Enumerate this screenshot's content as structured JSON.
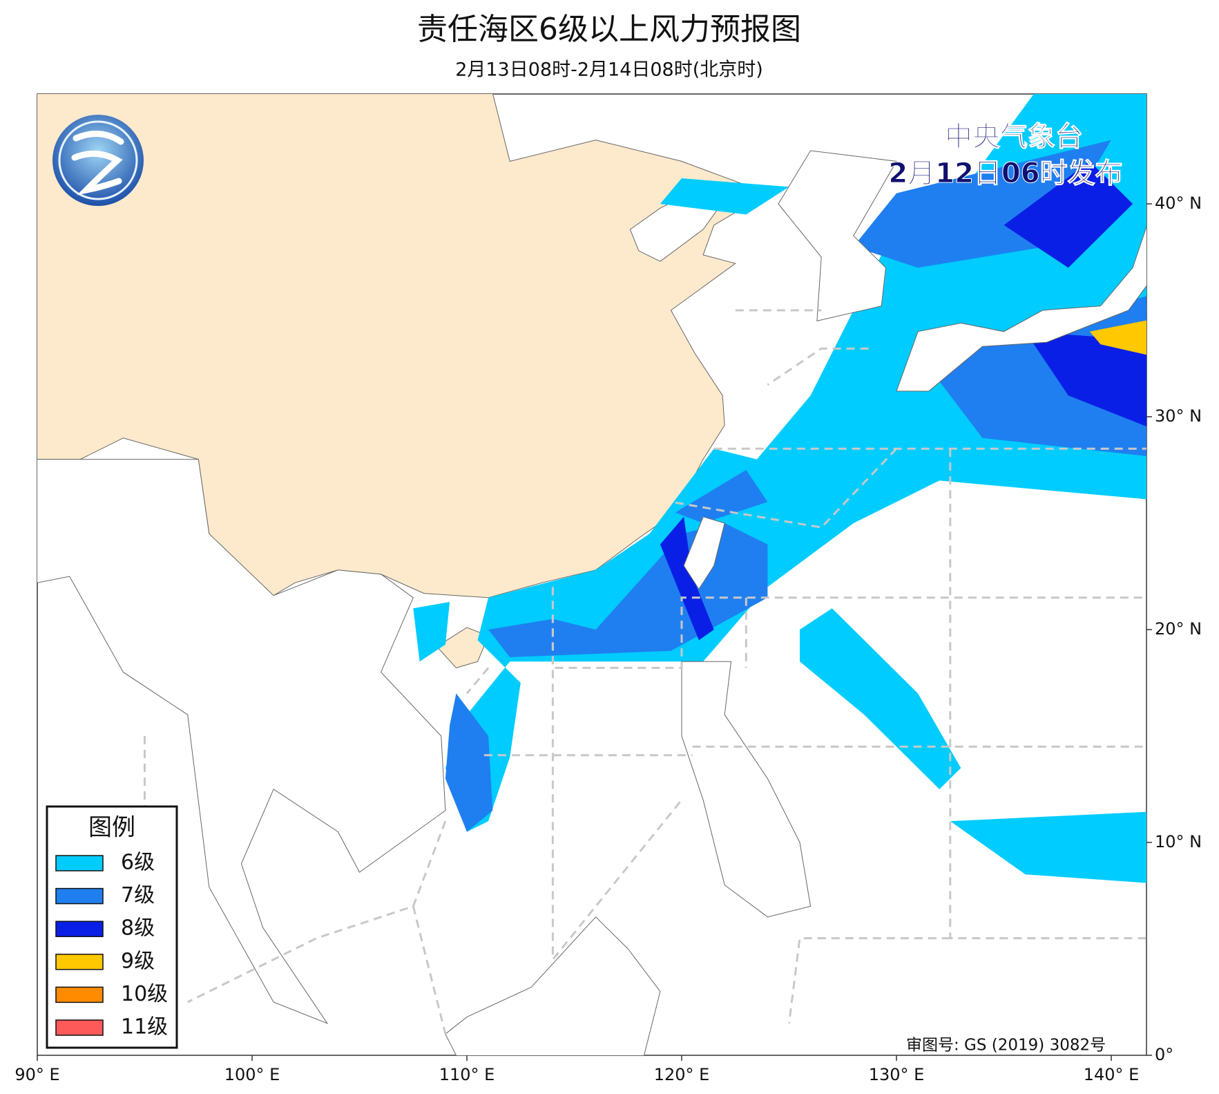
{
  "header": {
    "title": "责任海区6级以上风力预报图",
    "subtitle": "2月13日08时-2月14日08时(北京时)"
  },
  "issuer": {
    "agency": "中央气象台",
    "issued": "2月12日06时发布"
  },
  "legend": {
    "title": "图例",
    "items": [
      {
        "label": "6级",
        "color": "#00ccff"
      },
      {
        "label": "7级",
        "color": "#1f7ff0"
      },
      {
        "label": "8级",
        "color": "#0a1fe6"
      },
      {
        "label": "9级",
        "color": "#ffc800"
      },
      {
        "label": "10级",
        "color": "#ff8c00"
      },
      {
        "label": "11级",
        "color": "#ff5a5a"
      }
    ]
  },
  "approval": "审图号: GS (2019) 3082号",
  "lon_labels": [
    {
      "value": 90,
      "label": "90° E"
    },
    {
      "value": 100,
      "label": "100° E"
    },
    {
      "value": 110,
      "label": "110° E"
    },
    {
      "value": 120,
      "label": "120° E"
    },
    {
      "value": 130,
      "label": "130° E"
    },
    {
      "value": 140,
      "label": "140° E"
    }
  ],
  "lat_labels": [
    {
      "value": 40,
      "label": "40° N"
    },
    {
      "value": 30,
      "label": "30° N"
    },
    {
      "value": 20,
      "label": "20° N"
    },
    {
      "value": 10,
      "label": "10° N"
    },
    {
      "value": 0,
      "label": "0° "
    }
  ]
}
